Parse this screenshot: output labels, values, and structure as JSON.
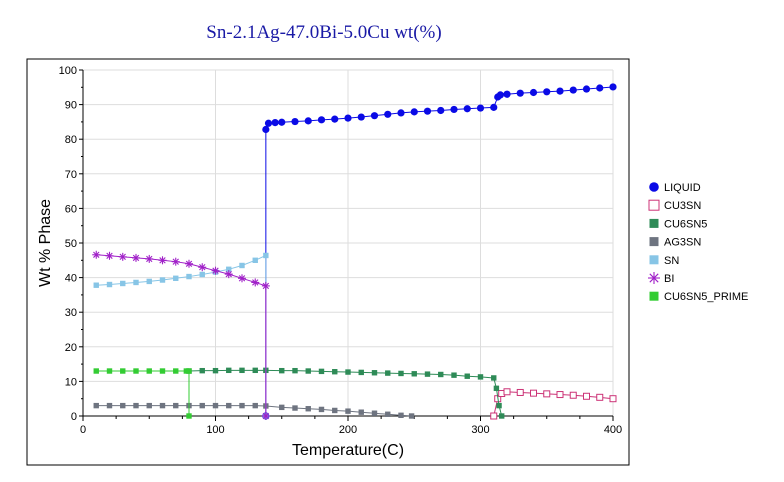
{
  "chart_data": {
    "type": "scatter",
    "title": "Sn-2.1Ag-47.0Bi-5.0Cu wt(%)",
    "xlabel": "Temperature(C)",
    "ylabel": "Wt % Phase",
    "xlim": [
      0,
      400
    ],
    "ylim": [
      0,
      100
    ],
    "xticks": [
      "0",
      "100",
      "200",
      "300",
      "400"
    ],
    "yticks": [
      "0",
      "10",
      "20",
      "30",
      "40",
      "50",
      "60",
      "70",
      "80",
      "90",
      "100"
    ],
    "grid": true,
    "legend": "right",
    "series": [
      {
        "name": "LIQUID",
        "color": "#0a0ae6",
        "marker": "circle",
        "points": [
          [
            138,
            0
          ],
          [
            138,
            82.8
          ],
          [
            140,
            84.6
          ],
          [
            145,
            84.8
          ],
          [
            150,
            84.9
          ],
          [
            160,
            85.1
          ],
          [
            170,
            85.3
          ],
          [
            180,
            85.6
          ],
          [
            190,
            85.8
          ],
          [
            200,
            86.1
          ],
          [
            210,
            86.4
          ],
          [
            220,
            86.8
          ],
          [
            230,
            87.2
          ],
          [
            240,
            87.6
          ],
          [
            250,
            87.9
          ],
          [
            260,
            88.1
          ],
          [
            270,
            88.3
          ],
          [
            280,
            88.6
          ],
          [
            290,
            88.8
          ],
          [
            300,
            89.0
          ],
          [
            310,
            89.2
          ],
          [
            313,
            92.2
          ],
          [
            315,
            92.8
          ],
          [
            320,
            93.0
          ],
          [
            330,
            93.3
          ],
          [
            340,
            93.5
          ],
          [
            350,
            93.7
          ],
          [
            360,
            93.9
          ],
          [
            370,
            94.2
          ],
          [
            380,
            94.5
          ],
          [
            390,
            94.8
          ],
          [
            400,
            95.1
          ]
        ]
      },
      {
        "name": "CU3SN",
        "color": "#cc3377",
        "marker": "square-open",
        "points": [
          [
            310,
            0
          ],
          [
            313,
            5.0
          ],
          [
            316,
            6.5
          ],
          [
            320,
            7.0
          ],
          [
            330,
            6.8
          ],
          [
            340,
            6.6
          ],
          [
            350,
            6.4
          ],
          [
            360,
            6.2
          ],
          [
            370,
            6.0
          ],
          [
            380,
            5.7
          ],
          [
            390,
            5.4
          ],
          [
            400,
            5.0
          ]
        ]
      },
      {
        "name": "CU6SN5",
        "color": "#2e8b57",
        "marker": "square",
        "points": [
          [
            80,
            13.0
          ],
          [
            90,
            13.1
          ],
          [
            100,
            13.1
          ],
          [
            110,
            13.2
          ],
          [
            120,
            13.2
          ],
          [
            130,
            13.2
          ],
          [
            138,
            13.2
          ],
          [
            150,
            13.1
          ],
          [
            160,
            13.1
          ],
          [
            170,
            13.0
          ],
          [
            180,
            12.9
          ],
          [
            190,
            12.8
          ],
          [
            200,
            12.7
          ],
          [
            210,
            12.6
          ],
          [
            220,
            12.5
          ],
          [
            230,
            12.4
          ],
          [
            240,
            12.3
          ],
          [
            250,
            12.2
          ],
          [
            260,
            12.1
          ],
          [
            270,
            12.0
          ],
          [
            280,
            11.8
          ],
          [
            290,
            11.5
          ],
          [
            300,
            11.3
          ],
          [
            310,
            11.0
          ],
          [
            312,
            8.0
          ],
          [
            314,
            3.0
          ],
          [
            316,
            0
          ]
        ]
      },
      {
        "name": "AG3SN",
        "color": "#6e7480",
        "marker": "square",
        "points": [
          [
            10,
            3.0
          ],
          [
            20,
            3.0
          ],
          [
            30,
            3.0
          ],
          [
            40,
            3.0
          ],
          [
            50,
            3.0
          ],
          [
            60,
            3.0
          ],
          [
            70,
            3.0
          ],
          [
            80,
            3.0
          ],
          [
            90,
            3.0
          ],
          [
            100,
            3.0
          ],
          [
            110,
            3.0
          ],
          [
            120,
            3.0
          ],
          [
            130,
            3.0
          ],
          [
            138,
            2.9
          ],
          [
            150,
            2.5
          ],
          [
            160,
            2.3
          ],
          [
            170,
            2.1
          ],
          [
            180,
            1.9
          ],
          [
            190,
            1.6
          ],
          [
            200,
            1.4
          ],
          [
            210,
            1.1
          ],
          [
            220,
            0.8
          ],
          [
            230,
            0.5
          ],
          [
            240,
            0.2
          ],
          [
            248,
            0.0
          ]
        ]
      },
      {
        "name": "SN",
        "color": "#87c5e6",
        "marker": "square",
        "points": [
          [
            10,
            37.8
          ],
          [
            20,
            38.0
          ],
          [
            30,
            38.3
          ],
          [
            40,
            38.6
          ],
          [
            50,
            38.9
          ],
          [
            60,
            39.3
          ],
          [
            70,
            39.8
          ],
          [
            80,
            40.3
          ],
          [
            90,
            40.9
          ],
          [
            100,
            41.6
          ],
          [
            110,
            42.4
          ],
          [
            120,
            43.5
          ],
          [
            130,
            45.0
          ],
          [
            138,
            46.4
          ],
          [
            138,
            0
          ]
        ]
      },
      {
        "name": "BI",
        "color": "#a020c8",
        "marker": "asterisk",
        "points": [
          [
            10,
            46.6
          ],
          [
            20,
            46.3
          ],
          [
            30,
            46.0
          ],
          [
            40,
            45.7
          ],
          [
            50,
            45.4
          ],
          [
            60,
            45.0
          ],
          [
            70,
            44.6
          ],
          [
            80,
            44.0
          ],
          [
            90,
            43.0
          ],
          [
            100,
            42.0
          ],
          [
            110,
            41.0
          ],
          [
            120,
            39.8
          ],
          [
            130,
            38.6
          ],
          [
            138,
            37.6
          ],
          [
            138,
            0
          ]
        ]
      },
      {
        "name": "CU6SN5_PRIME",
        "color": "#33cc33",
        "marker": "square",
        "points": [
          [
            10,
            13.0
          ],
          [
            20,
            13.0
          ],
          [
            30,
            13.0
          ],
          [
            40,
            13.0
          ],
          [
            50,
            13.0
          ],
          [
            60,
            13.0
          ],
          [
            70,
            13.0
          ],
          [
            78,
            13.0
          ],
          [
            80,
            13.0
          ],
          [
            80,
            0
          ]
        ]
      }
    ]
  }
}
